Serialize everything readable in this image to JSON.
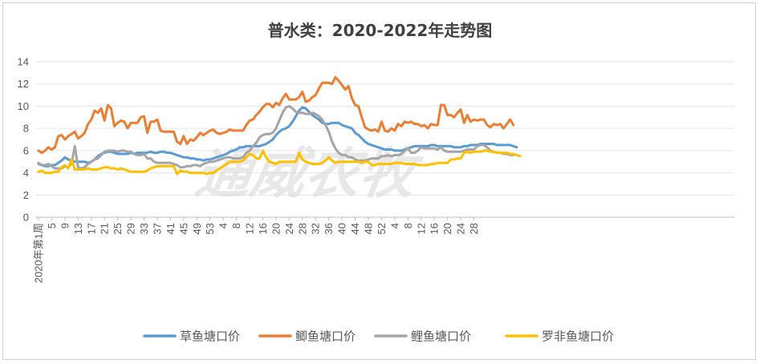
{
  "chart_data": {
    "type": "line",
    "title": "普水类：2020-2022年走势图",
    "watermark": "通威农牧",
    "ylim": [
      0,
      14
    ],
    "yticks": [
      0,
      2,
      4,
      6,
      8,
      10,
      12,
      14
    ],
    "xtick_labels": [
      "2020年第1周",
      "5",
      "9",
      "13",
      "17",
      "21",
      "25",
      "29",
      "33",
      "37",
      "41",
      "45",
      "49",
      "53",
      "4",
      "8",
      "12",
      "16",
      "20",
      "24",
      "28",
      "32",
      "36",
      "40",
      "44",
      "48",
      "52",
      "4",
      "8",
      "12",
      "16",
      "20",
      "24",
      "28"
    ],
    "grid": "horizontal",
    "legend_position": "bottom",
    "series": [
      {
        "name": "草鱼塘口价",
        "color": "#5B9BD5",
        "values": [
          4.8,
          4.7,
          4.6,
          4.6,
          4.7,
          4.7,
          4.9,
          5.1,
          5.4,
          5.2,
          5.1,
          5.0,
          5.0,
          5.0,
          5.0,
          4.9,
          5.0,
          5.2,
          5.5,
          5.7,
          5.8,
          5.9,
          5.9,
          5.8,
          5.7,
          5.7,
          5.7,
          5.7,
          5.8,
          5.7,
          5.8,
          5.8,
          5.8,
          5.8,
          5.9,
          5.8,
          5.8,
          5.9,
          5.9,
          5.8,
          5.8,
          5.7,
          5.6,
          5.5,
          5.4,
          5.4,
          5.3,
          5.3,
          5.2,
          5.2,
          5.1,
          5.2,
          5.2,
          5.3,
          5.4,
          5.5,
          5.6,
          5.7,
          5.9,
          6.0,
          6.1,
          6.3,
          6.3,
          6.4,
          6.4,
          6.4,
          6.4,
          6.4,
          6.5,
          6.6,
          6.8,
          7.0,
          7.4,
          7.7,
          7.9,
          8.0,
          8.2,
          8.6,
          9.1,
          9.6,
          9.9,
          9.8,
          9.5,
          9.2,
          9.0,
          8.8,
          8.5,
          8.4,
          8.4,
          8.5,
          8.5,
          8.5,
          8.3,
          8.2,
          8.1,
          8.0,
          7.6,
          7.4,
          7.1,
          6.8,
          6.6,
          6.5,
          6.4,
          6.3,
          6.2,
          6.1,
          6.1,
          6.1,
          6.0,
          6.0,
          6.0,
          6.1,
          6.2,
          6.3,
          6.4,
          6.4,
          6.4,
          6.4,
          6.4,
          6.5,
          6.5,
          6.4,
          6.4,
          6.4,
          6.4,
          6.4,
          6.3,
          6.3,
          6.3,
          6.4,
          6.4,
          6.5,
          6.5,
          6.5,
          6.6,
          6.6,
          6.6,
          6.6,
          6.6,
          6.5,
          6.5,
          6.5,
          6.5,
          6.5,
          6.4,
          6.3
        ]
      },
      {
        "name": "鲫鱼塘口价",
        "color": "#ED7D31",
        "values": [
          6.0,
          5.8,
          6.0,
          6.3,
          6.1,
          6.3,
          7.3,
          7.4,
          7.0,
          7.3,
          7.5,
          7.7,
          7.1,
          7.3,
          7.6,
          8.4,
          8.8,
          9.6,
          9.4,
          9.8,
          8.7,
          10.1,
          9.8,
          8.2,
          8.5,
          8.7,
          8.6,
          8.0,
          8.5,
          8.5,
          8.5,
          9.0,
          9.1,
          7.6,
          8.6,
          8.6,
          8.8,
          7.8,
          7.7,
          7.7,
          7.7,
          7.7,
          6.8,
          6.6,
          7.3,
          6.6,
          7.0,
          6.9,
          7.2,
          7.6,
          7.4,
          7.6,
          7.8,
          7.9,
          7.6,
          7.5,
          7.6,
          7.7,
          7.9,
          7.8,
          7.8,
          7.8,
          7.8,
          8.3,
          8.7,
          8.8,
          9.2,
          9.5,
          9.9,
          10.2,
          10.2,
          9.9,
          10.3,
          10.1,
          10.7,
          11.1,
          10.6,
          10.6,
          10.6,
          10.8,
          11.3,
          10.4,
          10.5,
          10.8,
          11.0,
          11.6,
          12.1,
          12.1,
          12.1,
          12.0,
          12.6,
          12.3,
          11.9,
          11.5,
          11.8,
          10.7,
          10.1,
          10.0,
          9.0,
          8.1,
          7.9,
          7.8,
          7.9,
          7.7,
          8.6,
          7.8,
          7.7,
          8.0,
          7.8,
          8.4,
          8.2,
          8.6,
          8.5,
          8.6,
          8.4,
          8.4,
          8.2,
          8.3,
          8.0,
          8.4,
          8.3,
          8.3,
          10.1,
          10.1,
          9.2,
          9.2,
          9.0,
          9.4,
          9.7,
          8.5,
          9.2,
          8.6,
          8.8,
          8.7,
          8.8,
          8.8,
          8.3,
          8.1,
          8.4,
          8.3,
          8.4,
          8.0,
          8.4,
          8.8,
          8.3
        ]
      },
      {
        "name": "鲤鱼塘口价",
        "color": "#A5A5A5",
        "values": [
          4.9,
          4.7,
          4.7,
          4.8,
          4.6,
          4.4,
          4.4,
          4.4,
          4.6,
          4.5,
          4.8,
          6.4,
          4.5,
          4.4,
          4.5,
          4.8,
          5.0,
          5.2,
          5.3,
          5.6,
          5.9,
          6.0,
          6.0,
          6.0,
          5.9,
          6.0,
          6.0,
          5.9,
          5.9,
          5.7,
          5.6,
          5.6,
          5.7,
          5.3,
          5.3,
          5.0,
          4.9,
          4.9,
          4.9,
          4.9,
          4.9,
          4.8,
          4.7,
          4.5,
          4.5,
          4.6,
          4.6,
          4.7,
          4.7,
          4.6,
          4.8,
          4.9,
          5.0,
          5.0,
          5.1,
          5.2,
          5.3,
          5.4,
          5.4,
          5.3,
          5.3,
          5.3,
          5.4,
          5.8,
          6.0,
          6.4,
          6.7,
          7.2,
          7.4,
          7.5,
          7.5,
          7.6,
          8.0,
          8.7,
          9.4,
          9.9,
          10.0,
          9.8,
          9.5,
          9.4,
          9.4,
          9.3,
          9.3,
          9.4,
          9.3,
          9.1,
          8.8,
          8.3,
          7.7,
          6.8,
          6.2,
          5.8,
          5.6,
          5.6,
          5.4,
          5.4,
          5.2,
          5.1,
          5.1,
          5.1,
          5.2,
          5.3,
          5.3,
          5.3,
          5.5,
          5.5,
          5.6,
          5.5,
          5.6,
          5.6,
          5.7,
          6.0,
          6.2,
          5.8,
          5.8,
          6.0,
          6.3,
          6.2,
          6.2,
          6.2,
          6.2,
          6.1,
          6.3,
          6.0,
          5.9,
          5.9,
          5.9,
          5.9,
          5.9,
          6.0,
          6.1,
          6.1,
          6.1,
          6.4,
          6.5,
          6.5,
          6.3,
          6.0,
          5.9,
          5.8,
          5.8,
          5.7,
          5.7,
          5.6,
          5.6
        ]
      },
      {
        "name": "罗非鱼塘口价",
        "color": "#FFC000",
        "values": [
          4.1,
          4.2,
          4.0,
          4.0,
          4.0,
          4.1,
          4.1,
          4.5,
          4.7,
          4.4,
          5.2,
          4.3,
          4.3,
          4.3,
          4.3,
          4.4,
          4.3,
          4.3,
          4.3,
          4.4,
          4.5,
          4.5,
          4.4,
          4.4,
          4.3,
          4.4,
          4.3,
          4.2,
          4.1,
          4.1,
          4.1,
          4.1,
          4.1,
          4.2,
          4.4,
          4.5,
          4.6,
          4.6,
          4.6,
          4.6,
          4.6,
          4.6,
          3.9,
          4.2,
          4.1,
          4.1,
          4.0,
          4.0,
          4.0,
          4.0,
          4.0,
          3.9,
          4.0,
          4.0,
          4.2,
          4.4,
          4.6,
          4.8,
          5.0,
          5.0,
          5.0,
          5.0,
          5.1,
          5.4,
          5.7,
          5.6,
          5.3,
          5.3,
          6.0,
          5.4,
          5.0,
          4.9,
          4.8,
          5.0,
          5.0,
          5.0,
          5.0,
          5.0,
          5.0,
          5.8,
          5.2,
          5.0,
          4.9,
          4.8,
          4.8,
          4.8,
          4.9,
          5.1,
          5.4,
          5.1,
          4.9,
          5.0,
          5.0,
          5.0,
          5.0,
          5.0,
          5.0,
          5.0,
          4.9,
          5.0,
          5.0,
          4.7,
          4.7,
          4.8,
          4.8,
          4.8,
          4.8,
          4.8,
          4.9,
          4.9,
          4.9,
          4.8,
          4.8,
          4.8,
          4.8,
          4.7,
          4.7,
          4.7,
          4.7,
          4.8,
          4.8,
          4.9,
          4.9,
          4.9,
          4.9,
          5.2,
          5.2,
          5.3,
          5.3,
          5.8,
          5.9,
          5.8,
          5.9,
          5.9,
          5.9,
          6.0,
          6.0,
          5.9,
          5.9,
          5.8,
          5.8,
          5.8,
          5.8,
          5.7,
          5.7,
          5.6,
          5.5
        ]
      }
    ]
  }
}
